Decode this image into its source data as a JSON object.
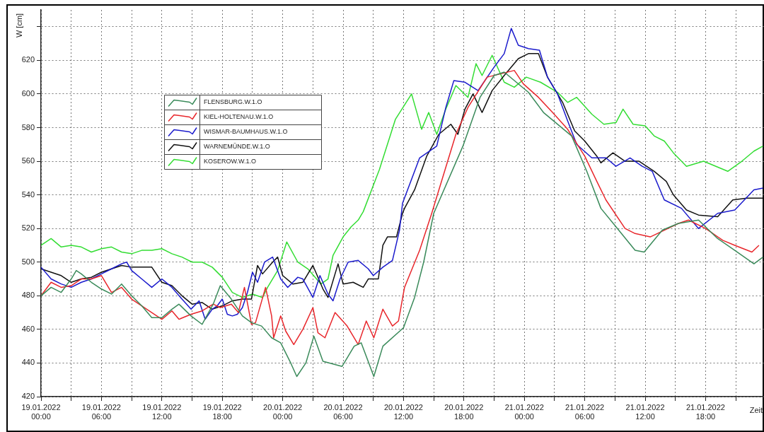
{
  "chart_data": {
    "type": "line",
    "xlabel": "Zeit",
    "ylabel": "W [cm]",
    "xlim": [
      "2022-01-19T00:00",
      "2022-01-21T23:48"
    ],
    "ylim": [
      420,
      650
    ],
    "xticks": [
      {
        "value": "2022-01-19T00:00",
        "label": "19.01.2022\n00:00"
      },
      {
        "value": "2022-01-19T03:00",
        "label": null
      },
      {
        "value": "2022-01-19T06:00",
        "label": "19.01.2022\n06:00"
      },
      {
        "value": "2022-01-19T09:00",
        "label": null
      },
      {
        "value": "2022-01-19T12:00",
        "label": "19.01.2022\n12:00"
      },
      {
        "value": "2022-01-19T15:00",
        "label": null
      },
      {
        "value": "2022-01-19T18:00",
        "label": "19.01.2022\n18:00"
      },
      {
        "value": "2022-01-19T21:00",
        "label": null
      },
      {
        "value": "2022-01-20T00:00",
        "label": "20.01.2022\n00:00"
      },
      {
        "value": "2022-01-20T03:00",
        "label": null
      },
      {
        "value": "2022-01-20T06:00",
        "label": "20.01.2022\n06:00"
      },
      {
        "value": "2022-01-20T09:00",
        "label": null
      },
      {
        "value": "2022-01-20T12:00",
        "label": "20.01.2022\n12:00"
      },
      {
        "value": "2022-01-20T15:00",
        "label": null
      },
      {
        "value": "2022-01-20T18:00",
        "label": "20.01.2022\n18:00"
      },
      {
        "value": "2022-01-20T21:00",
        "label": null
      },
      {
        "value": "2022-01-21T00:00",
        "label": "21.01.2022\n00:00"
      },
      {
        "value": "2022-01-21T03:00",
        "label": null
      },
      {
        "value": "2022-01-21T06:00",
        "label": "21.01.2022\n06:00"
      },
      {
        "value": "2022-01-21T09:00",
        "label": null
      },
      {
        "value": "2022-01-21T12:00",
        "label": "21.01.2022\n12:00"
      },
      {
        "value": "2022-01-21T15:00",
        "label": null
      },
      {
        "value": "2022-01-21T18:00",
        "label": "21.01.2022\n18:00"
      },
      {
        "value": "2022-01-21T21:00",
        "label": null
      }
    ],
    "yticks": [
      420,
      440,
      460,
      480,
      500,
      520,
      540,
      560,
      580,
      600,
      620,
      {
        "value": 640,
        "label": null
      }
    ],
    "grid": true,
    "legend": "top left",
    "series": [
      {
        "name": "FLENSBURG.W.1.O",
        "color": "#3a8a5a",
        "x": [
          "2022-01-19T00:00",
          "2022-01-19T01:00",
          "2022-01-19T02:00",
          "2022-01-19T03:00",
          "2022-01-19T03:30",
          "2022-01-19T04:00",
          "2022-01-19T05:00",
          "2022-01-19T06:00",
          "2022-01-19T07:00",
          "2022-01-19T08:00",
          "2022-01-19T09:00",
          "2022-01-19T10:00",
          "2022-01-19T11:00",
          "2022-01-19T12:00",
          "2022-01-19T13:00",
          "2022-01-19T13:42",
          "2022-01-19T14:54",
          "2022-01-19T16:00",
          "2022-01-19T17:06",
          "2022-01-19T17:48",
          "2022-01-19T18:54",
          "2022-01-19T20:00",
          "2022-01-19T20:54",
          "2022-01-19T21:54",
          "2022-01-19T22:54",
          "2022-01-19T23:48",
          "2022-01-20T00:48",
          "2022-01-20T01:24",
          "2022-01-20T02:18",
          "2022-01-20T03:06",
          "2022-01-20T04:00",
          "2022-01-20T05:54",
          "2022-01-20T07:06",
          "2022-01-20T07:48",
          "2022-01-20T09:03",
          "2022-01-20T09:57",
          "2022-01-20T12:00",
          "2022-01-20T13:06",
          "2022-01-20T14:00",
          "2022-01-20T15:00",
          "2022-01-20T17:54",
          "2022-01-20T19:36",
          "2022-01-20T21:00",
          "2022-01-20T22:00",
          "2022-01-21T00:24",
          "2022-01-21T01:54",
          "2022-01-21T04:42",
          "2022-01-21T06:12",
          "2022-01-21T07:36",
          "2022-01-21T09:06",
          "2022-01-21T11:00",
          "2022-01-21T11:54",
          "2022-01-21T13:42",
          "2022-01-21T15:18",
          "2022-01-21T17:18",
          "2022-01-21T19:12",
          "2022-01-21T20:54",
          "2022-01-21T22:48",
          "2022-01-21T23:42"
        ],
        "values": [
          480,
          485,
          482,
          490,
          495,
          493,
          488,
          484,
          481,
          487,
          480,
          474,
          467,
          467,
          472,
          475,
          468,
          463,
          475,
          486,
          478,
          468,
          464,
          462,
          455,
          452,
          440,
          432,
          440,
          456,
          441,
          438,
          450,
          452,
          432,
          450,
          461,
          479,
          500,
          529,
          569,
          598,
          611,
          613,
          601,
          589,
          575,
          554,
          532,
          521,
          507,
          506,
          519,
          523,
          525,
          514,
          507,
          499,
          503
        ]
      },
      {
        "name": "KIEL-HOLTENAU.W.1.O",
        "color": "#e8262b",
        "x": [
          "2022-01-19T00:00",
          "2022-01-19T01:00",
          "2022-01-19T02:00",
          "2022-01-19T03:00",
          "2022-01-19T04:00",
          "2022-01-19T05:00",
          "2022-01-19T06:00",
          "2022-01-19T07:00",
          "2022-01-19T08:00",
          "2022-01-19T09:00",
          "2022-01-19T10:00",
          "2022-01-19T11:00",
          "2022-01-19T12:00",
          "2022-01-19T13:00",
          "2022-01-19T13:42",
          "2022-01-19T14:54",
          "2022-01-19T16:00",
          "2022-01-19T17:06",
          "2022-01-19T17:48",
          "2022-01-19T18:54",
          "2022-01-19T19:36",
          "2022-01-19T20:12",
          "2022-01-19T20:54",
          "2022-01-19T21:18",
          "2022-01-19T22:18",
          "2022-01-19T22:54",
          "2022-01-19T23:06",
          "2022-01-19T23:48",
          "2022-01-20T00:18",
          "2022-01-20T01:06",
          "2022-01-20T02:00",
          "2022-01-20T03:00",
          "2022-01-20T03:30",
          "2022-01-20T04:12",
          "2022-01-20T05:12",
          "2022-01-20T06:24",
          "2022-01-20T07:30",
          "2022-01-20T08:18",
          "2022-01-20T09:03",
          "2022-01-20T09:57",
          "2022-01-20T10:54",
          "2022-01-20T11:30",
          "2022-01-20T12:06",
          "2022-01-20T13:36",
          "2022-01-20T14:48",
          "2022-01-20T17:12",
          "2022-01-20T18:24",
          "2022-01-20T20:18",
          "2022-01-20T23:00",
          "2022-01-20T23:54",
          "2022-01-21T01:24",
          "2022-01-21T02:48",
          "2022-01-21T04:18",
          "2022-01-21T06:00",
          "2022-01-21T07:12",
          "2022-01-21T08:06",
          "2022-01-21T10:00",
          "2022-01-21T11:00",
          "2022-01-21T12:30",
          "2022-01-21T13:54",
          "2022-01-21T15:18",
          "2022-01-21T16:18",
          "2022-01-21T18:00",
          "2022-01-21T19:42",
          "2022-01-21T20:54",
          "2022-01-21T22:36",
          "2022-01-21T23:18"
        ],
        "values": [
          480,
          488,
          485,
          486,
          490,
          490,
          492,
          482,
          485,
          478,
          474,
          470,
          466,
          471,
          466,
          469,
          471,
          475,
          473,
          475,
          470,
          485,
          463,
          464,
          485,
          468,
          455,
          468,
          459,
          451,
          460,
          473,
          458,
          455,
          470,
          462,
          451,
          465,
          455,
          472,
          462,
          465,
          485,
          507,
          529,
          576,
          592,
          610,
          614,
          606,
          598,
          589,
          579,
          563,
          548,
          537,
          520,
          517,
          515,
          519,
          523,
          525,
          520,
          513,
          510,
          506,
          510
        ]
      },
      {
        "name": "WISMAR-BAUMHAUS.W.1.O",
        "color": "#1a1acc",
        "x": [
          "2022-01-19T00:00",
          "2022-01-19T01:00",
          "2022-01-19T02:00",
          "2022-01-19T03:00",
          "2022-01-19T04:00",
          "2022-01-19T05:00",
          "2022-01-19T06:00",
          "2022-01-19T07:00",
          "2022-01-19T08:00",
          "2022-01-19T08:30",
          "2022-01-19T09:00",
          "2022-01-19T10:00",
          "2022-01-19T11:00",
          "2022-01-19T12:00",
          "2022-01-19T13:00",
          "2022-01-19T14:00",
          "2022-01-19T14:54",
          "2022-01-19T15:42",
          "2022-01-19T16:18",
          "2022-01-19T17:00",
          "2022-01-19T17:30",
          "2022-01-19T18:00",
          "2022-01-19T18:30",
          "2022-01-19T19:00",
          "2022-01-19T19:30",
          "2022-01-19T20:00",
          "2022-01-19T20:30",
          "2022-01-19T21:00",
          "2022-01-19T21:30",
          "2022-01-19T22:12",
          "2022-01-19T23:00",
          "2022-01-19T23:48",
          "2022-01-20T00:30",
          "2022-01-20T01:30",
          "2022-01-20T02:00",
          "2022-01-20T03:00",
          "2022-01-20T03:42",
          "2022-01-20T04:30",
          "2022-01-20T05:00",
          "2022-01-20T05:42",
          "2022-01-20T06:30",
          "2022-01-20T07:30",
          "2022-01-20T08:30",
          "2022-01-20T09:00",
          "2022-01-20T09:57",
          "2022-01-20T10:54",
          "2022-01-20T11:36",
          "2022-01-20T11:54",
          "2022-01-20T13:36",
          "2022-01-20T15:18",
          "2022-01-20T16:12",
          "2022-01-20T17:00",
          "2022-01-20T18:06",
          "2022-01-20T19:24",
          "2022-01-20T21:00",
          "2022-01-20T22:00",
          "2022-01-20T22:42",
          "2022-01-20T23:24",
          "2022-01-21T00:24",
          "2022-01-21T01:30",
          "2022-01-21T02:18",
          "2022-01-21T03:18",
          "2022-01-21T04:18",
          "2022-01-21T05:12",
          "2022-01-21T06:42",
          "2022-01-21T08:06",
          "2022-01-21T09:06",
          "2022-01-21T10:30",
          "2022-01-21T11:42",
          "2022-01-21T12:42",
          "2022-01-21T13:54",
          "2022-01-21T15:36",
          "2022-01-21T17:18",
          "2022-01-21T19:12",
          "2022-01-21T20:54",
          "2022-01-21T22:48",
          "2022-01-21T23:42"
        ],
        "values": [
          497,
          490,
          487,
          485,
          488,
          490,
          493,
          496,
          499,
          500,
          495,
          490,
          485,
          490,
          485,
          478,
          472,
          477,
          466,
          472,
          474,
          478,
          469,
          468,
          469,
          473,
          482,
          494,
          488,
          500,
          503,
          490,
          485,
          491,
          490,
          479,
          492,
          481,
          477,
          490,
          500,
          501,
          496,
          492,
          497,
          501,
          519,
          535,
          562,
          569,
          592,
          608,
          607,
          602,
          616,
          624,
          639,
          629,
          627,
          626,
          610,
          600,
          584,
          570,
          562,
          562,
          557,
          562,
          557,
          554,
          537,
          532,
          520,
          529,
          531,
          543,
          544
        ]
      },
      {
        "name": "WARNEMÜNDE.W.1.O",
        "color": "#111111",
        "x": [
          "2022-01-19T00:00",
          "2022-01-19T01:00",
          "2022-01-19T02:00",
          "2022-01-19T03:00",
          "2022-01-19T04:00",
          "2022-01-19T05:00",
          "2022-01-19T06:00",
          "2022-01-19T07:00",
          "2022-01-19T08:00",
          "2022-01-19T09:00",
          "2022-01-19T10:00",
          "2022-01-19T11:00",
          "2022-01-19T12:00",
          "2022-01-19T13:00",
          "2022-01-19T14:00",
          "2022-01-19T15:00",
          "2022-01-19T16:00",
          "2022-01-19T17:00",
          "2022-01-19T18:00",
          "2022-01-19T19:00",
          "2022-01-19T20:00",
          "2022-01-19T20:54",
          "2022-01-19T21:30",
          "2022-01-19T22:00",
          "2022-01-19T23:00",
          "2022-01-19T23:30",
          "2022-01-20T00:00",
          "2022-01-20T01:00",
          "2022-01-20T02:00",
          "2022-01-20T03:00",
          "2022-01-20T04:00",
          "2022-01-20T04:30",
          "2022-01-20T05:30",
          "2022-01-20T06:00",
          "2022-01-20T07:00",
          "2022-01-20T08:00",
          "2022-01-20T08:30",
          "2022-01-20T09:30",
          "2022-01-20T09:57",
          "2022-01-20T10:24",
          "2022-01-20T11:18",
          "2022-01-20T11:54",
          "2022-01-20T12:06",
          "2022-01-20T13:06",
          "2022-01-20T14:18",
          "2022-01-20T15:30",
          "2022-01-20T16:42",
          "2022-01-20T17:24",
          "2022-01-20T18:06",
          "2022-01-20T18:54",
          "2022-01-20T19:48",
          "2022-01-20T20:48",
          "2022-01-20T22:00",
          "2022-01-20T23:24",
          "2022-01-21T00:24",
          "2022-01-21T01:24",
          "2022-01-21T02:18",
          "2022-01-21T03:48",
          "2022-01-21T05:00",
          "2022-01-21T06:00",
          "2022-01-21T07:12",
          "2022-01-21T07:36",
          "2022-01-21T08:48",
          "2022-01-21T10:00",
          "2022-01-21T11:24",
          "2022-01-21T12:54",
          "2022-01-21T14:06",
          "2022-01-21T14:48",
          "2022-01-21T16:06",
          "2022-01-21T17:18",
          "2022-01-21T19:12",
          "2022-01-21T20:42",
          "2022-01-21T22:06",
          "2022-01-21T23:42"
        ],
        "values": [
          496,
          494,
          492,
          488,
          490,
          491,
          494,
          496,
          498,
          497,
          497,
          497,
          488,
          486,
          480,
          475,
          476,
          472,
          474,
          477,
          478,
          478,
          498,
          493,
          500,
          503,
          492,
          487,
          488,
          498,
          484,
          479,
          499,
          487,
          488,
          485,
          490,
          490,
          510,
          515,
          515,
          529,
          532,
          543,
          563,
          576,
          582,
          576,
          591,
          600,
          589,
          602,
          611,
          621,
          624,
          624,
          610,
          595,
          578,
          572,
          563,
          559,
          565,
          560,
          560,
          554,
          548,
          540,
          531,
          528,
          527,
          537,
          538,
          538
        ]
      },
      {
        "name": "KOSEROW.W.1.O",
        "color": "#33dd33",
        "x": [
          "2022-01-19T00:00",
          "2022-01-19T01:00",
          "2022-01-19T02:00",
          "2022-01-19T03:00",
          "2022-01-19T04:00",
          "2022-01-19T05:00",
          "2022-01-19T06:00",
          "2022-01-19T07:00",
          "2022-01-19T08:00",
          "2022-01-19T09:00",
          "2022-01-19T10:00",
          "2022-01-19T11:00",
          "2022-01-19T12:00",
          "2022-01-19T13:00",
          "2022-01-19T14:00",
          "2022-01-19T15:00",
          "2022-01-19T16:00",
          "2022-01-19T17:00",
          "2022-01-19T18:00",
          "2022-01-19T19:00",
          "2022-01-19T20:00",
          "2022-01-19T21:00",
          "2022-01-19T22:00",
          "2022-01-19T22:30",
          "2022-01-19T23:30",
          "2022-01-20T00:24",
          "2022-01-20T01:30",
          "2022-01-20T02:30",
          "2022-01-20T03:48",
          "2022-01-20T04:30",
          "2022-01-20T05:00",
          "2022-01-20T06:00",
          "2022-01-20T06:48",
          "2022-01-20T07:30",
          "2022-01-20T08:00",
          "2022-01-20T09:36",
          "2022-01-20T11:12",
          "2022-01-20T12:48",
          "2022-01-20T13:48",
          "2022-01-20T14:30",
          "2022-01-20T15:18",
          "2022-01-20T16:12",
          "2022-01-20T17:12",
          "2022-01-20T18:24",
          "2022-01-20T19:12",
          "2022-01-20T19:48",
          "2022-01-20T20:48",
          "2022-01-20T22:00",
          "2022-01-20T23:00",
          "2022-01-21T00:12",
          "2022-01-21T01:36",
          "2022-01-21T03:18",
          "2022-01-21T04:18",
          "2022-01-21T05:12",
          "2022-01-21T06:42",
          "2022-01-21T07:54",
          "2022-01-21T09:06",
          "2022-01-21T09:48",
          "2022-01-21T10:48",
          "2022-01-21T12:00",
          "2022-01-21T12:54",
          "2022-01-21T13:54",
          "2022-01-21T14:48",
          "2022-01-21T16:06",
          "2022-01-21T17:48",
          "2022-01-21T19:24",
          "2022-01-21T20:12",
          "2022-01-21T21:36",
          "2022-01-21T22:48",
          "2022-01-21T23:42"
        ],
        "values": [
          510,
          514,
          509,
          510,
          509,
          506,
          508,
          509,
          506,
          505,
          507,
          507,
          508,
          505,
          503,
          500,
          500,
          497,
          491,
          482,
          479,
          481,
          479,
          485,
          495,
          512,
          500,
          496,
          487,
          490,
          504,
          515,
          521,
          525,
          530,
          555,
          585,
          600,
          579,
          589,
          576,
          591,
          605,
          598,
          618,
          611,
          623,
          607,
          604,
          610,
          607,
          601,
          595,
          598,
          588,
          582,
          583,
          591,
          582,
          581,
          575,
          572,
          565,
          557,
          560,
          556,
          554,
          560,
          566,
          569
        ]
      }
    ]
  }
}
